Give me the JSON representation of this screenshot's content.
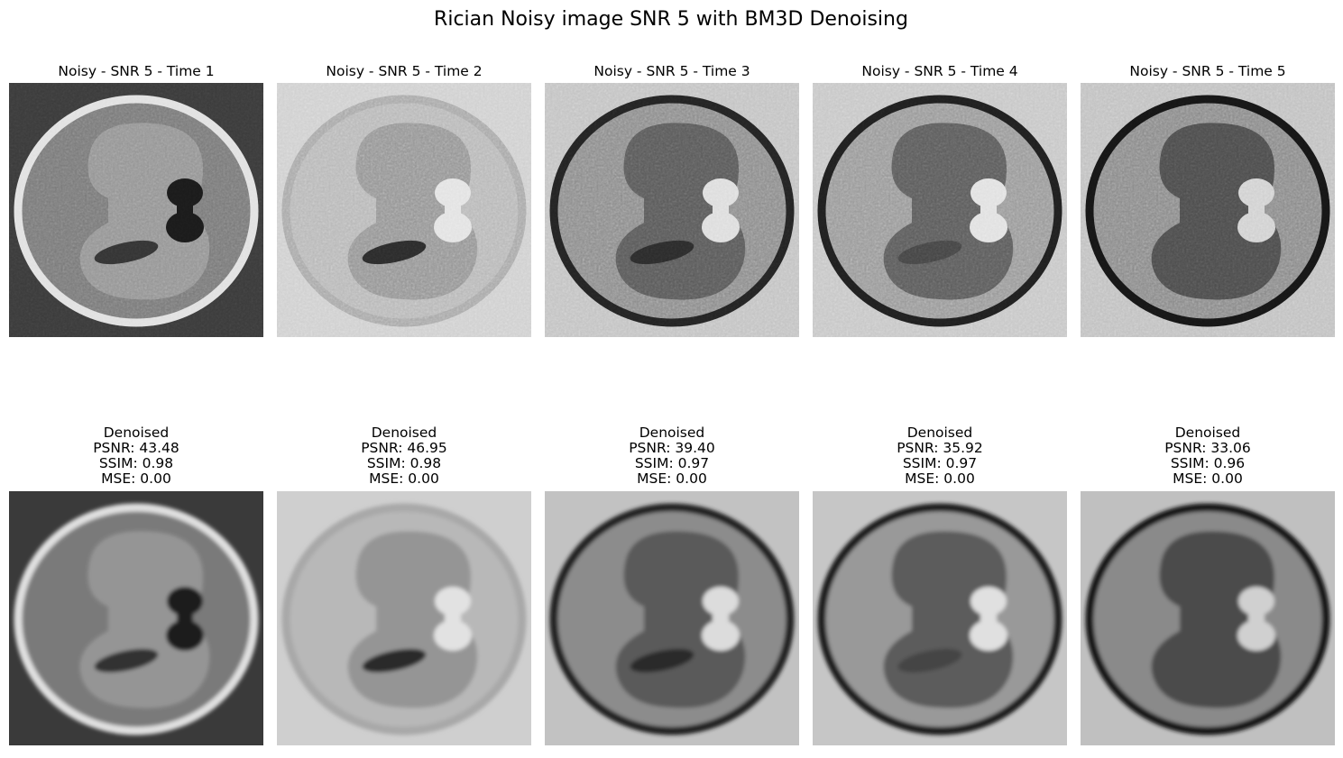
{
  "title": "Rician Noisy image SNR 5 with BM3D Denoising",
  "noisy": [
    "Noisy - SNR 5 - Time 1",
    "Noisy - SNR 5 - Time 2",
    "Noisy - SNR 5 - Time 3",
    "Noisy - SNR 5 - Time 4",
    "Noisy - SNR 5 - Time 5"
  ],
  "denoised": [
    {
      "label": "Denoised",
      "psnr": "PSNR: 43.48",
      "ssim": "SSIM: 0.98",
      "mse": "MSE: 0.00"
    },
    {
      "label": "Denoised",
      "psnr": "PSNR: 46.95",
      "ssim": "SSIM: 0.98",
      "mse": "MSE: 0.00"
    },
    {
      "label": "Denoised",
      "psnr": "PSNR: 39.40",
      "ssim": "SSIM: 0.97",
      "mse": "MSE: 0.00"
    },
    {
      "label": "Denoised",
      "psnr": "PSNR: 35.92",
      "ssim": "SSIM: 0.97",
      "mse": "MSE: 0.00"
    },
    {
      "label": "Denoised",
      "psnr": "PSNR: 33.06",
      "ssim": "SSIM: 0.96",
      "mse": "MSE: 0.00"
    }
  ]
}
